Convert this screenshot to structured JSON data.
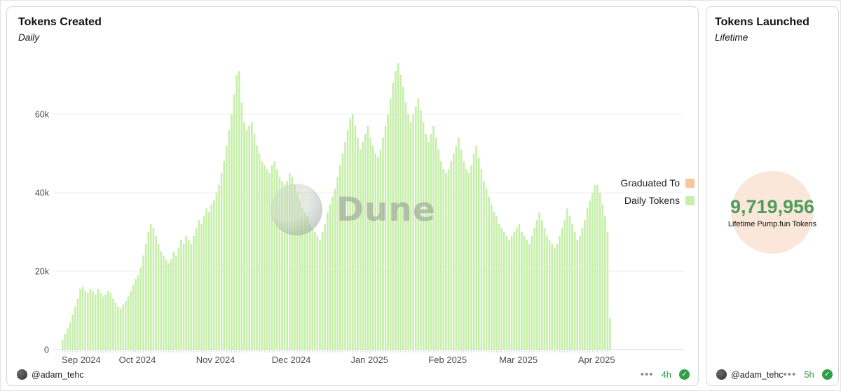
{
  "left_panel": {
    "title": "Tokens Created",
    "subtitle": "Daily",
    "legend": [
      {
        "label": "Graduated To",
        "color": "#f5c79a"
      },
      {
        "label": "Daily Tokens",
        "color": "#c6efa9"
      }
    ],
    "watermark": "Dune",
    "footer": {
      "author": "@adam_tehc",
      "menu": "•••",
      "age": "4h",
      "check": "✓"
    }
  },
  "right_panel": {
    "title": "Tokens Launched",
    "subtitle": "Lifetime",
    "stat_value": "9,719,956",
    "stat_label": "Lifetime Pump.fun Tokens",
    "accent_color": "#4f9d5d",
    "circle_color": "#fbe7da",
    "footer": {
      "author": "@adam_tehc",
      "menu": "•••",
      "age": "5h",
      "check": "✓"
    }
  },
  "chart_data": {
    "type": "bar",
    "title": "Tokens Created",
    "subtitle": "Daily",
    "x_tick_labels": [
      "Sep 2024",
      "Oct 2024",
      "Nov 2024",
      "Dec 2024",
      "Jan 2025",
      "Feb 2025",
      "Mar 2025",
      "Apr 2025"
    ],
    "month_start_indices": [
      0,
      30,
      61,
      91,
      122,
      153,
      181,
      212
    ],
    "y_tick_labels": [
      "0",
      "20k",
      "40k",
      "60k"
    ],
    "y_ticks": [
      0,
      20000,
      40000,
      60000
    ],
    "ylim": [
      0,
      75000
    ],
    "grid": true,
    "legend_position": "right",
    "legend": [
      "Graduated To",
      "Daily Tokens"
    ],
    "values_unit": "thousands of tokens per day",
    "series": [
      {
        "name": "Daily Tokens",
        "color": "#c6efa9",
        "values_thousands": [
          2.5,
          4,
          5.5,
          7,
          9,
          11,
          13,
          15.5,
          16,
          15,
          14.5,
          15.5,
          15,
          14,
          15.5,
          14.5,
          13.5,
          14,
          15,
          14.5,
          13,
          12,
          11,
          10.5,
          11.5,
          12.5,
          13.5,
          15,
          16.5,
          18,
          19,
          21,
          24,
          27,
          30,
          32,
          31,
          29,
          27,
          25,
          24,
          23,
          22,
          23,
          25,
          24,
          26,
          28,
          27,
          29,
          28,
          27,
          29,
          31,
          33,
          32,
          34,
          36,
          35,
          37,
          38,
          40,
          42,
          45,
          48,
          52,
          56,
          60,
          65,
          70,
          71,
          63,
          58,
          56,
          57,
          58,
          55,
          52,
          50,
          48,
          47,
          46,
          45,
          47,
          48,
          46,
          44,
          43,
          42,
          43,
          45,
          44,
          42,
          40,
          38,
          36,
          35,
          34,
          32,
          31,
          30,
          29,
          28,
          30,
          32,
          35,
          37,
          39,
          41,
          44,
          47,
          50,
          53,
          56,
          59,
          60,
          57,
          54,
          51,
          53,
          55,
          57,
          54,
          52,
          50,
          49,
          51,
          54,
          57,
          60,
          64,
          68,
          71,
          73,
          70,
          67,
          63,
          60,
          58,
          60,
          62,
          64,
          61,
          58,
          55,
          53,
          55,
          57,
          54,
          51,
          48,
          46,
          45,
          46,
          48,
          50,
          52,
          54,
          51,
          48,
          46,
          45,
          47,
          50,
          52,
          49,
          46,
          43,
          41,
          39,
          37,
          35,
          34,
          32,
          31,
          30,
          29,
          28,
          29,
          30,
          31,
          32,
          30,
          29,
          28,
          27,
          29,
          31,
          33,
          35,
          33,
          31,
          29,
          28,
          27,
          26,
          27,
          29,
          31,
          33,
          36,
          34,
          32,
          30,
          28,
          29,
          31,
          33,
          36,
          38,
          40,
          42,
          42,
          40,
          37,
          34,
          30,
          8
        ]
      }
    ]
  }
}
